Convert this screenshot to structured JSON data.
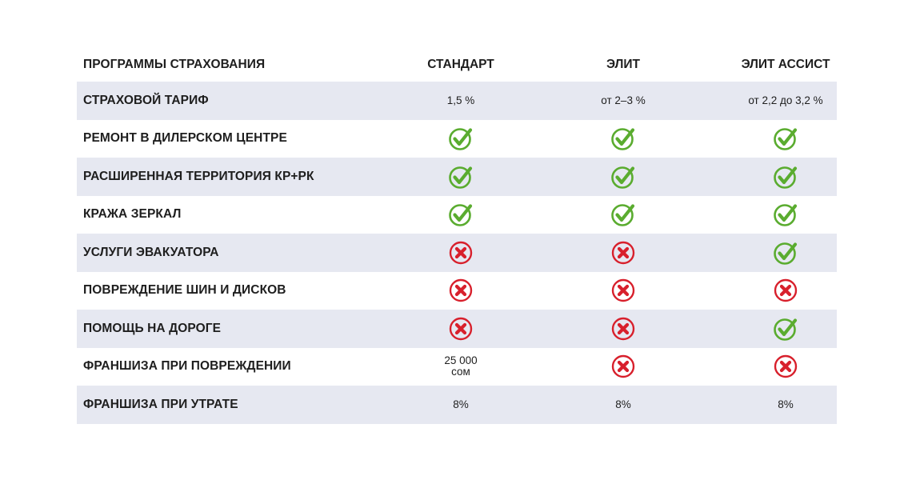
{
  "header": {
    "label": "ПРОГРАММЫ СТРАХОВАНИЯ",
    "columns": [
      "СТАНДАРТ",
      "ЭЛИТ",
      "ЭЛИТ АССИСТ"
    ]
  },
  "colors": {
    "check": "#5aac2f",
    "cross": "#d8202c",
    "row_shade": "#e6e8f1"
  },
  "rows": [
    {
      "label": "СТРАХОВОЙ ТАРИФ",
      "values": [
        {
          "type": "text",
          "text": "1,5 %"
        },
        {
          "type": "text",
          "text": "от 2–3 %"
        },
        {
          "type": "text",
          "text": "от 2,2 до 3,2 %"
        }
      ]
    },
    {
      "label": "РЕМОНТ В ДИЛЕРСКОМ ЦЕНТРЕ",
      "values": [
        {
          "type": "icon",
          "icon": "check-icon"
        },
        {
          "type": "icon",
          "icon": "check-icon"
        },
        {
          "type": "icon",
          "icon": "check-icon"
        }
      ]
    },
    {
      "label": "РАСШИРЕННАЯ ТЕРРИТОРИЯ  КР+РК",
      "values": [
        {
          "type": "icon",
          "icon": "check-icon"
        },
        {
          "type": "icon",
          "icon": "check-icon"
        },
        {
          "type": "icon",
          "icon": "check-icon"
        }
      ]
    },
    {
      "label": "КРАЖА ЗЕРКАЛ",
      "values": [
        {
          "type": "icon",
          "icon": "check-icon"
        },
        {
          "type": "icon",
          "icon": "check-icon"
        },
        {
          "type": "icon",
          "icon": "check-icon"
        }
      ]
    },
    {
      "label": "УСЛУГИ ЭВАКУАТОРА",
      "values": [
        {
          "type": "icon",
          "icon": "cross-icon"
        },
        {
          "type": "icon",
          "icon": "cross-icon"
        },
        {
          "type": "icon",
          "icon": "check-icon"
        }
      ]
    },
    {
      "label": "ПОВРЕЖДЕНИЕ ШИН И ДИСКОВ",
      "values": [
        {
          "type": "icon",
          "icon": "cross-icon"
        },
        {
          "type": "icon",
          "icon": "cross-icon"
        },
        {
          "type": "icon",
          "icon": "cross-icon"
        }
      ]
    },
    {
      "label": "ПОМОЩЬ НА ДОРОГЕ",
      "values": [
        {
          "type": "icon",
          "icon": "cross-icon"
        },
        {
          "type": "icon",
          "icon": "cross-icon"
        },
        {
          "type": "icon",
          "icon": "check-icon"
        }
      ]
    },
    {
      "label": "ФРАНШИЗА ПРИ ПОВРЕЖДЕНИИ",
      "values": [
        {
          "type": "text",
          "text": "25 000",
          "text2": "сом"
        },
        {
          "type": "icon",
          "icon": "cross-icon"
        },
        {
          "type": "icon",
          "icon": "cross-icon"
        }
      ]
    },
    {
      "label": "ФРАНШИЗА ПРИ УТРАТЕ",
      "values": [
        {
          "type": "text",
          "text": "8%"
        },
        {
          "type": "text",
          "text": "8%"
        },
        {
          "type": "text",
          "text": "8%"
        }
      ]
    }
  ]
}
